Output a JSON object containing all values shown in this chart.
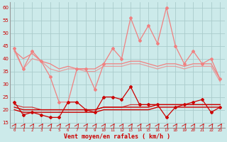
{
  "x": [
    0,
    1,
    2,
    3,
    4,
    5,
    6,
    7,
    8,
    9,
    10,
    11,
    12,
    13,
    14,
    15,
    16,
    17,
    18,
    19,
    20,
    21,
    22,
    23
  ],
  "rafales": [
    44,
    36,
    43,
    39,
    33,
    23,
    23,
    36,
    36,
    28,
    38,
    44,
    40,
    56,
    47,
    53,
    46,
    60,
    45,
    38,
    43,
    38,
    40,
    32
  ],
  "gust_trend1": [
    43,
    40,
    42,
    39,
    38,
    36,
    37,
    36,
    36,
    36,
    38,
    38,
    38,
    39,
    39,
    38,
    37,
    38,
    38,
    37,
    38,
    38,
    38,
    32
  ],
  "gust_trend2": [
    43,
    36,
    40,
    39,
    36,
    35,
    36,
    36,
    35,
    35,
    37,
    37,
    37,
    38,
    38,
    37,
    36,
    37,
    37,
    36,
    37,
    37,
    37,
    31
  ],
  "vent_moyen": [
    23,
    18,
    19,
    18,
    17,
    17,
    23,
    23,
    20,
    19,
    25,
    25,
    24,
    29,
    22,
    22,
    22,
    17,
    21,
    22,
    23,
    24,
    19,
    21
  ],
  "mean_trend1": [
    20,
    19,
    19,
    19,
    19,
    19,
    19,
    19,
    19,
    19,
    20,
    20,
    20,
    20,
    20,
    20,
    21,
    21,
    21,
    21,
    21,
    21,
    21,
    21
  ],
  "mean_trend2": [
    21,
    20,
    20,
    20,
    20,
    20,
    20,
    20,
    20,
    20,
    21,
    21,
    21,
    21,
    21,
    21,
    22,
    22,
    22,
    22,
    22,
    22,
    22,
    22
  ],
  "mean_trend3": [
    22,
    21,
    21,
    20,
    20,
    20,
    20,
    20,
    20,
    20,
    21,
    21,
    21,
    22,
    22,
    22,
    22,
    22,
    22,
    22,
    22,
    22,
    22,
    22
  ],
  "ylim": [
    13,
    62
  ],
  "yticks": [
    15,
    20,
    25,
    30,
    35,
    40,
    45,
    50,
    55,
    60
  ],
  "xlabel": "Vent moyen/en rafales ( km/h )",
  "background_color": "#cceaea",
  "grid_color": "#aacccc",
  "light_red": "#f08080",
  "mid_red": "#e05050",
  "dark_red": "#cc0000",
  "arrow_color": "#cc2222"
}
